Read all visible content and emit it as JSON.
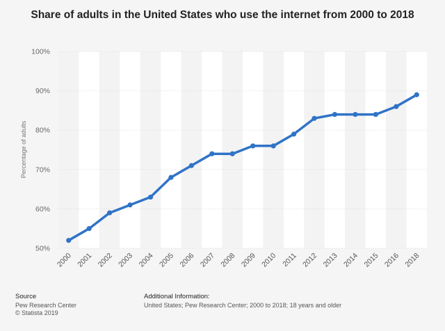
{
  "chart_data": {
    "type": "line",
    "title": "Share of adults in the United States who use the internet from 2000 to 2018",
    "ylabel": "Percentage of adults",
    "xlabel": "",
    "categories": [
      "2000",
      "2001",
      "2002",
      "2003",
      "2004",
      "2005",
      "2006",
      "2007",
      "2008",
      "2009",
      "2010",
      "2011",
      "2012",
      "2013",
      "2014",
      "2015",
      "2016",
      "2018"
    ],
    "values": [
      52,
      55,
      59,
      61,
      63,
      68,
      71,
      74,
      74,
      76,
      76,
      79,
      83,
      84,
      84,
      84,
      86,
      89
    ],
    "ylim": [
      50,
      100
    ],
    "yticks": [
      50,
      60,
      70,
      80,
      90,
      100
    ],
    "ytick_suffix": "%",
    "grid": true,
    "series_color": "#2f73c7"
  },
  "footer": {
    "source_heading": "Source",
    "source_line1": "Pew Research Center",
    "source_line2": "© Statista 2019",
    "info_heading": "Additional Information:",
    "info_text": "United States; Pew Research Center; 2000 to 2018; 18 years and older"
  }
}
